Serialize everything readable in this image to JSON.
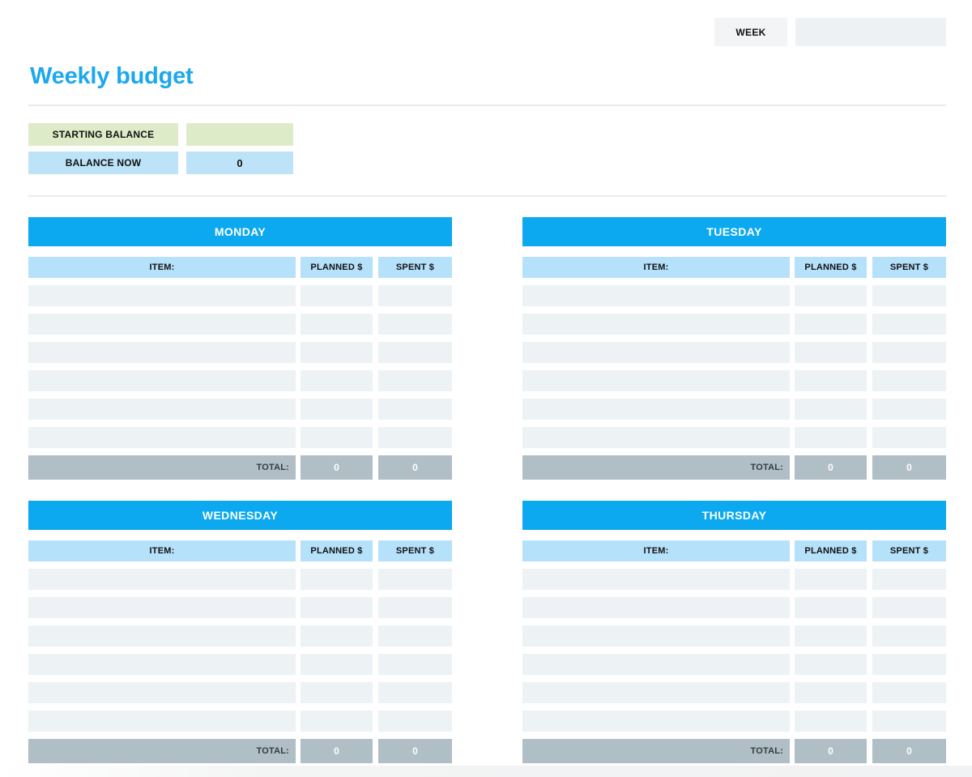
{
  "page": {
    "week_label": "WEEK",
    "week_value": "",
    "title": "Weekly budget"
  },
  "balance": {
    "starting_label": "STARTING BALANCE",
    "starting_value": "",
    "now_label": "BALANCE NOW",
    "now_value": "0"
  },
  "table_headers": {
    "item": "ITEM:",
    "planned": "PLANNED $",
    "spent": "SPENT $",
    "total": "TOTAL:"
  },
  "days": [
    {
      "name": "MONDAY",
      "rows": [
        {
          "item": "",
          "planned": "",
          "spent": ""
        },
        {
          "item": "",
          "planned": "",
          "spent": ""
        },
        {
          "item": "",
          "planned": "",
          "spent": ""
        },
        {
          "item": "",
          "planned": "",
          "spent": ""
        },
        {
          "item": "",
          "planned": "",
          "spent": ""
        },
        {
          "item": "",
          "planned": "",
          "spent": ""
        }
      ],
      "total_planned": "0",
      "total_spent": "0"
    },
    {
      "name": "TUESDAY",
      "rows": [
        {
          "item": "",
          "planned": "",
          "spent": ""
        },
        {
          "item": "",
          "planned": "",
          "spent": ""
        },
        {
          "item": "",
          "planned": "",
          "spent": ""
        },
        {
          "item": "",
          "planned": "",
          "spent": ""
        },
        {
          "item": "",
          "planned": "",
          "spent": ""
        },
        {
          "item": "",
          "planned": "",
          "spent": ""
        }
      ],
      "total_planned": "0",
      "total_spent": "0"
    },
    {
      "name": "WEDNESDAY",
      "rows": [
        {
          "item": "",
          "planned": "",
          "spent": ""
        },
        {
          "item": "",
          "planned": "",
          "spent": ""
        },
        {
          "item": "",
          "planned": "",
          "spent": ""
        },
        {
          "item": "",
          "planned": "",
          "spent": ""
        },
        {
          "item": "",
          "planned": "",
          "spent": ""
        },
        {
          "item": "",
          "planned": "",
          "spent": ""
        }
      ],
      "total_planned": "0",
      "total_spent": "0"
    },
    {
      "name": "THURSDAY",
      "rows": [
        {
          "item": "",
          "planned": "",
          "spent": ""
        },
        {
          "item": "",
          "planned": "",
          "spent": ""
        },
        {
          "item": "",
          "planned": "",
          "spent": ""
        },
        {
          "item": "",
          "planned": "",
          "spent": ""
        },
        {
          "item": "",
          "planned": "",
          "spent": ""
        },
        {
          "item": "",
          "planned": "",
          "spent": ""
        }
      ],
      "total_planned": "0",
      "total_spent": "0"
    }
  ],
  "colors": {
    "accent_blue": "#0ca9f0",
    "title_blue": "#1ca8ee",
    "header_light_blue": "#b5e1fa",
    "balance_blue": "#bde3f9",
    "balance_green": "#deebc9",
    "row_fill": "#edf2f5",
    "total_gray": "#b0bec5",
    "field_gray": "#edf1f4"
  }
}
